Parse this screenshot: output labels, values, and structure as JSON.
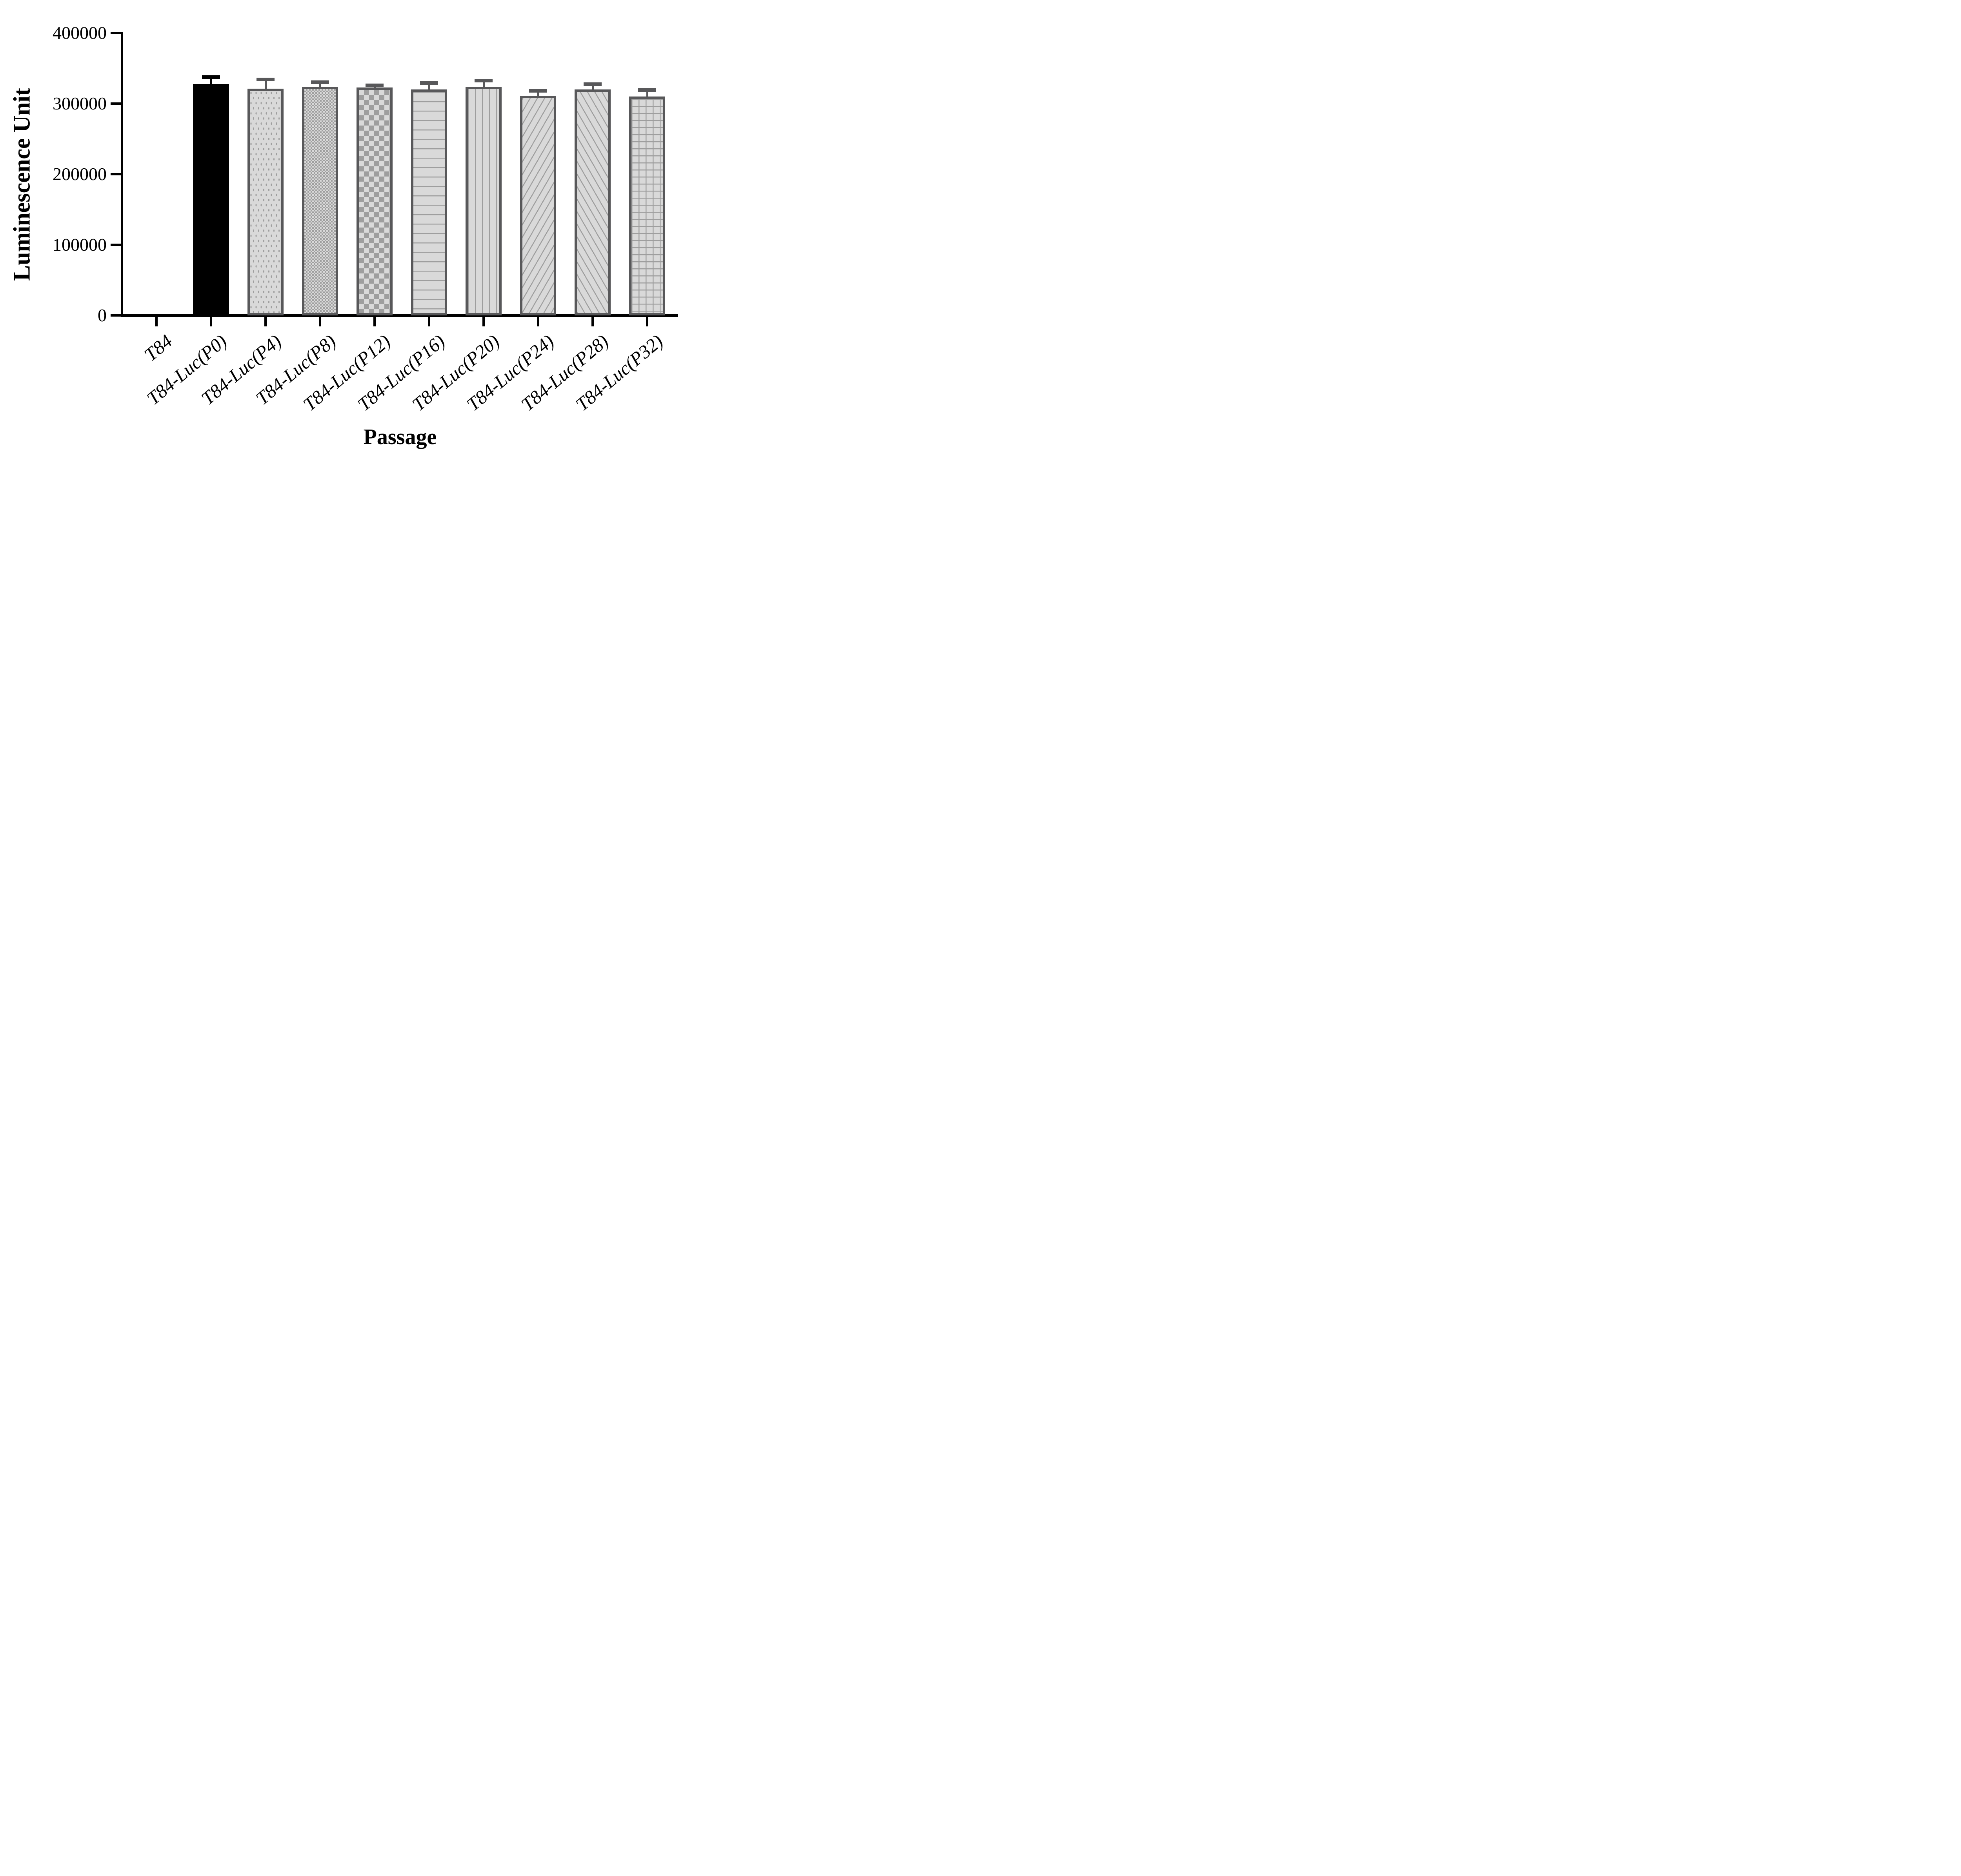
{
  "chart_data": {
    "type": "bar",
    "title": "",
    "xlabel": "Passage",
    "ylabel": "Luminescence Unit",
    "ylim": [
      0,
      400000
    ],
    "grid": false,
    "legend": "none",
    "y_tick_labels": [
      "0",
      "100000",
      "200000",
      "300000",
      "400000"
    ],
    "y_tick_values": [
      0,
      100000,
      200000,
      300000,
      400000
    ],
    "categories": [
      "T84",
      "T84-Luc(P0)",
      "T84-Luc(P4)",
      "T84-Luc(P8)",
      "T84-Luc(P12)",
      "T84-Luc(P16)",
      "T84-Luc(P20)",
      "T84-Luc(P24)",
      "T84-Luc(P28)",
      "T84-Luc(P32)"
    ],
    "series": [
      {
        "name": "Luminescence Unit",
        "values": [
          0,
          328000,
          321000,
          324000,
          323000,
          320000,
          324000,
          311000,
          320000,
          310000
        ],
        "errors": [
          0,
          9000,
          13000,
          6000,
          2500,
          9000,
          8000,
          7000,
          7000,
          9000
        ]
      }
    ],
    "bar_patterns": [
      "none",
      "solid-black",
      "dots",
      "checker-fine",
      "checker-coarse",
      "hlines",
      "vlines",
      "diag-up",
      "diag-down",
      "grid"
    ],
    "colors": {
      "bar_fill": "#d9d9d9",
      "bar_border": "#58585a",
      "pattern_gray": "#9e9e9e",
      "black_bar": "#000000",
      "axis": "#000000"
    }
  }
}
